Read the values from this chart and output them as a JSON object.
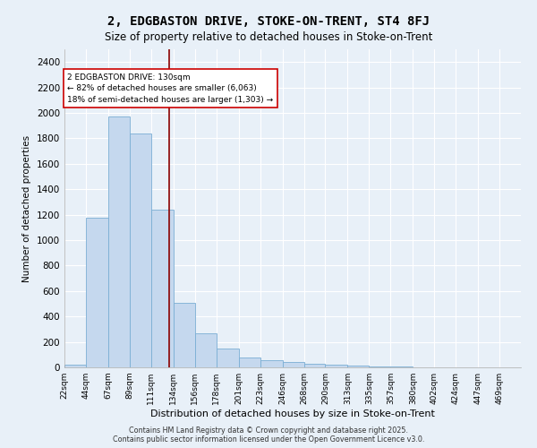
{
  "title1": "2, EDGBASTON DRIVE, STOKE-ON-TRENT, ST4 8FJ",
  "title2": "Size of property relative to detached houses in Stoke-on-Trent",
  "xlabel": "Distribution of detached houses by size in Stoke-on-Trent",
  "ylabel": "Number of detached properties",
  "bin_labels": [
    "22sqm",
    "44sqm",
    "67sqm",
    "89sqm",
    "111sqm",
    "134sqm",
    "156sqm",
    "178sqm",
    "201sqm",
    "223sqm",
    "246sqm",
    "268sqm",
    "290sqm",
    "313sqm",
    "335sqm",
    "357sqm",
    "380sqm",
    "402sqm",
    "424sqm",
    "447sqm",
    "469sqm"
  ],
  "bin_edges": [
    22,
    44,
    67,
    89,
    111,
    134,
    156,
    178,
    201,
    223,
    246,
    268,
    290,
    313,
    335,
    357,
    380,
    402,
    424,
    447,
    469,
    491
  ],
  "counts": [
    20,
    1175,
    1975,
    1840,
    1240,
    510,
    270,
    145,
    80,
    55,
    40,
    30,
    18,
    12,
    8,
    5,
    3,
    3,
    2,
    2,
    2
  ],
  "bar_color": "#c5d8ee",
  "bar_edge_color": "#7aaed4",
  "property_size": 130,
  "vline_color": "#8b0000",
  "annotation_text": "2 EDGBASTON DRIVE: 130sqm\n← 82% of detached houses are smaller (6,063)\n18% of semi-detached houses are larger (1,303) →",
  "annotation_box_color": "#ffffff",
  "annotation_box_edge_color": "#cc0000",
  "ylim": [
    0,
    2500
  ],
  "yticks": [
    0,
    200,
    400,
    600,
    800,
    1000,
    1200,
    1400,
    1600,
    1800,
    2000,
    2200,
    2400
  ],
  "background_color": "#e8f0f8",
  "grid_color": "#ffffff",
  "footer1": "Contains HM Land Registry data © Crown copyright and database right 2025.",
  "footer2": "Contains public sector information licensed under the Open Government Licence v3.0."
}
